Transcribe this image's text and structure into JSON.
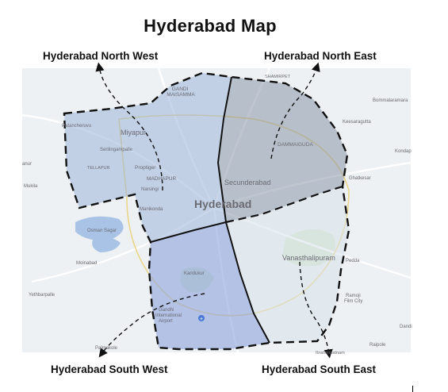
{
  "title": "Hyderabad  Map",
  "regions": {
    "north_west": {
      "label": "Hyderabad North West",
      "color": "#9db4d8"
    },
    "north_east": {
      "label": "Hyderabad North East",
      "color": "#8a97a8"
    },
    "south_west": {
      "label": "Hyderabad South West",
      "color": "#8ea3dc"
    },
    "south_east": {
      "label": "Hyderabad South East",
      "color": "#d9e1ea"
    }
  },
  "places": {
    "gandi_maisamma": "GANDI\nMAISAMMA",
    "shamirpet": "SHAMIRPET",
    "bommalaramaram": "Bommalaramara",
    "keesaragutta": "Keesaragutta",
    "patancheruvu": "Patancheruvu",
    "miyapur": "Miyapur",
    "dammaiguda": "DAMMAIGUDA",
    "serilingampalle": "Serilingampalle",
    "tellapur": "TELLAPUR",
    "madhapur": "MADHAPUR",
    "secunderabad": "Secunderabad",
    "hyderabad": "Hyderabad",
    "mukila": "Mukila",
    "anur": "anur",
    "kondap": "Kondap",
    "narsingi": "Narsingi",
    "ghatkesar": "Ghatkesar",
    "manikonda": "Manikonda",
    "osman_sagar": "Osman Sagar",
    "moinabad": "Moinabad",
    "vanasthalipuram": "Vanasthalipuram",
    "pedda": "Pedda",
    "yethbarpalle": "Yethbarpalle",
    "ramoji": "Ramoji\nFilm City",
    "kandukur": "Kandukur",
    "airport": "Gandhi\nInternational\nAirport",
    "palmakole": "Palmakole",
    "ibrahimpatnam": "Ibrahimpatnam",
    "raipole": "Raipole",
    "dandi": "Dandi",
    "proptiger": "Proptiger"
  }
}
